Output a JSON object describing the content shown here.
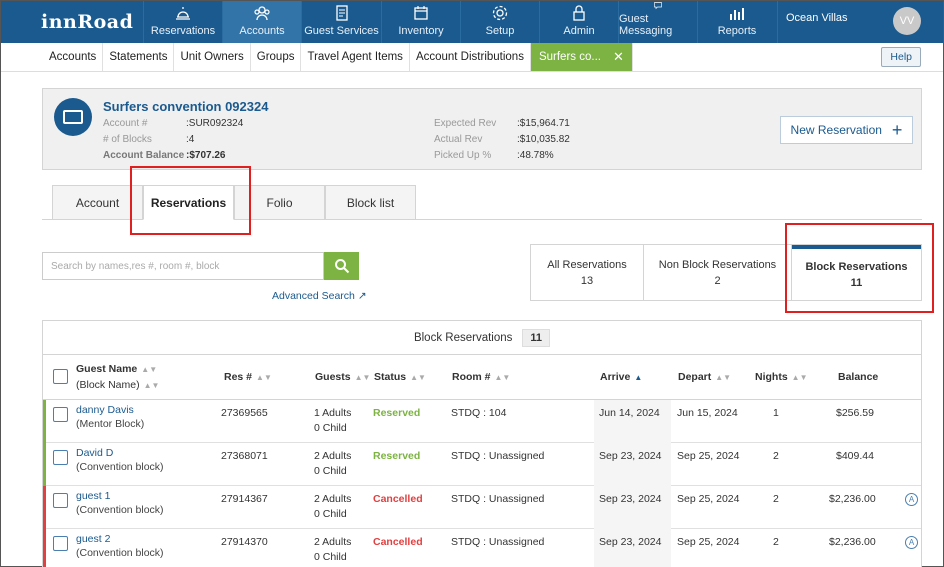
{
  "app": {
    "logo": "innRoad",
    "property": "Ocean Villas",
    "user_initials": "VV"
  },
  "nav": [
    {
      "label": "Reservations",
      "icon": "bell-icon"
    },
    {
      "label": "Accounts",
      "icon": "accounts-icon",
      "active": true
    },
    {
      "label": "Guest Services",
      "icon": "clipboard-icon"
    },
    {
      "label": "Inventory",
      "icon": "calendar-icon"
    },
    {
      "label": "Setup",
      "icon": "gear-icon"
    },
    {
      "label": "Admin",
      "icon": "lock-icon"
    },
    {
      "label": "Guest Messaging",
      "icon": "chat-icon"
    },
    {
      "label": "Reports",
      "icon": "bar-chart-icon"
    }
  ],
  "subnav": {
    "items": [
      "Accounts",
      "Statements",
      "Unit Owners",
      "Groups",
      "Travel Agent Items",
      "Account Distributions"
    ],
    "active_tab": "Surfers co...",
    "help": "Help"
  },
  "account": {
    "title": "Surfers convention 092324",
    "account_no_label": "Account #",
    "account_no": ":SUR092324",
    "blocks_label": "# of Blocks",
    "blocks": ":4",
    "balance_label": "Account Balance",
    "balance": ":$707.26",
    "exp_rev_label": "Expected Rev",
    "exp_rev": ":$15,964.71",
    "act_rev_label": "Actual Rev",
    "act_rev": ":$10,035.82",
    "picked_label": "Picked Up %",
    "picked": ":48.78%",
    "new_res": "New Reservation"
  },
  "tabs": [
    "Account",
    "Reservations",
    "Folio",
    "Block list"
  ],
  "search": {
    "placeholder": "Search by names,res #, room #, block",
    "advanced": "Advanced Search"
  },
  "filters": [
    {
      "label": "All Reservations",
      "count": "13"
    },
    {
      "label": "Non Block Reservations",
      "count": "2"
    },
    {
      "label": "Block Reservations",
      "count": "11"
    }
  ],
  "table": {
    "caption": "Block Reservations",
    "caption_count": "11",
    "headers": {
      "guest": "Guest Name",
      "block": "(Block Name)",
      "res": "Res #",
      "guests": "Guests",
      "status": "Status",
      "room": "Room #",
      "arrive": "Arrive",
      "depart": "Depart",
      "nights": "Nights",
      "balance": "Balance"
    },
    "rows": [
      {
        "name": "danny Davis",
        "block": "(Mentor Block)",
        "res": "27369565",
        "adults": "1 Adults",
        "child": "0 Child",
        "status": "Reserved",
        "room": "STDQ : 104",
        "arrive": "Jun 14, 2024",
        "depart": "Jun 15, 2024",
        "nights": "1",
        "balance": "$256.59",
        "bar_color": "#7cb342"
      },
      {
        "name": "David D",
        "block": "(Convention block)",
        "res": "27368071",
        "adults": "2 Adults",
        "child": "0 Child",
        "status": "Reserved",
        "room": "STDQ : Unassigned",
        "arrive": "Sep 23, 2024",
        "depart": "Sep 25, 2024",
        "nights": "2",
        "balance": "$409.44",
        "bar_color": "#7cb342"
      },
      {
        "name": "guest 1",
        "block": "(Convention block)",
        "res": "27914367",
        "adults": "2 Adults",
        "child": "0 Child",
        "status": "Cancelled",
        "room": "STDQ : Unassigned",
        "arrive": "Sep 23, 2024",
        "depart": "Sep 25, 2024",
        "nights": "2",
        "balance": "$2,236.00",
        "bar_color": "#e04040",
        "a_icon": "A"
      },
      {
        "name": "guest 2",
        "block": "(Convention block)",
        "res": "27914370",
        "adults": "2 Adults",
        "child": "0 Child",
        "status": "Cancelled",
        "room": "STDQ : Unassigned",
        "arrive": "Sep 23, 2024",
        "depart": "Sep 25, 2024",
        "nights": "2",
        "balance": "$2,236.00",
        "bar_color": "#e04040",
        "a_icon": "A"
      }
    ]
  }
}
